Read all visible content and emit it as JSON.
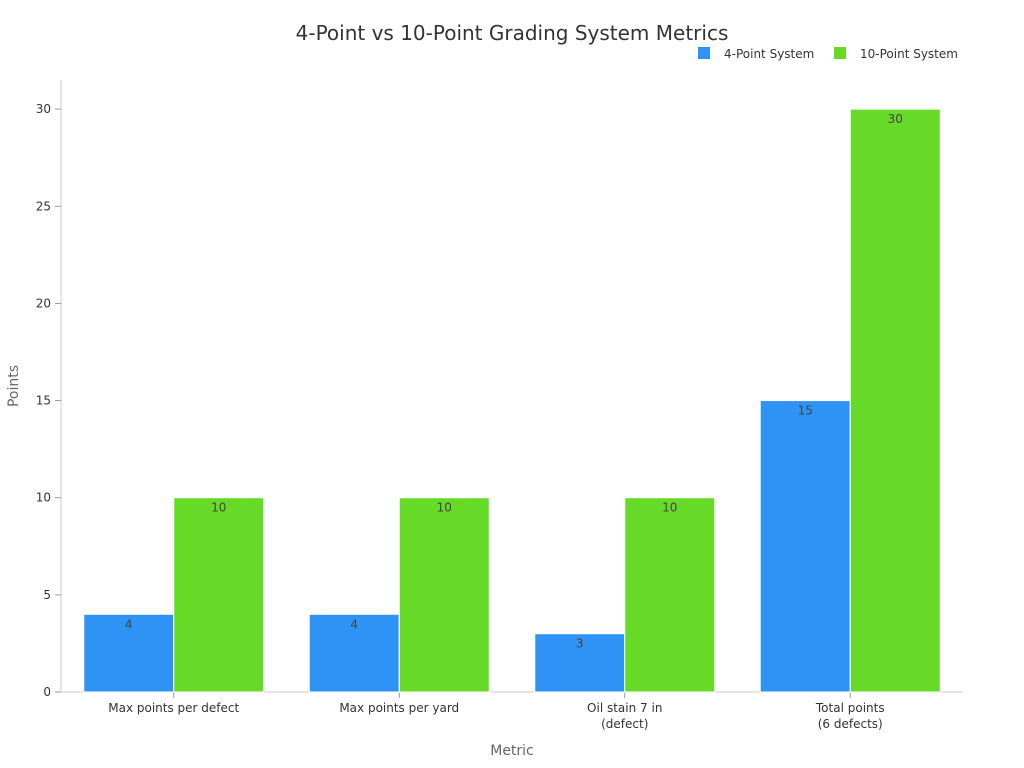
{
  "chart_data": {
    "type": "bar",
    "title": "4-Point vs 10-Point Grading System Metrics",
    "xlabel": "Metric",
    "ylabel": "Points",
    "categories": [
      [
        "Max points per defect"
      ],
      [
        "Max points per yard"
      ],
      [
        "Oil stain 7 in",
        "(defect)"
      ],
      [
        "Total points",
        "(6 defects)"
      ]
    ],
    "series": [
      {
        "name": "4-Point System",
        "color": "#2f93f6",
        "values": [
          4,
          4,
          3,
          15
        ]
      },
      {
        "name": "10-Point System",
        "color": "#66da26",
        "values": [
          10,
          10,
          10,
          30
        ]
      }
    ],
    "ylim": [
      0,
      31.5
    ],
    "yticks": [
      0,
      5,
      10,
      15,
      20,
      25,
      30
    ],
    "grid": false,
    "legend": "top-right",
    "data_labels": true
  }
}
